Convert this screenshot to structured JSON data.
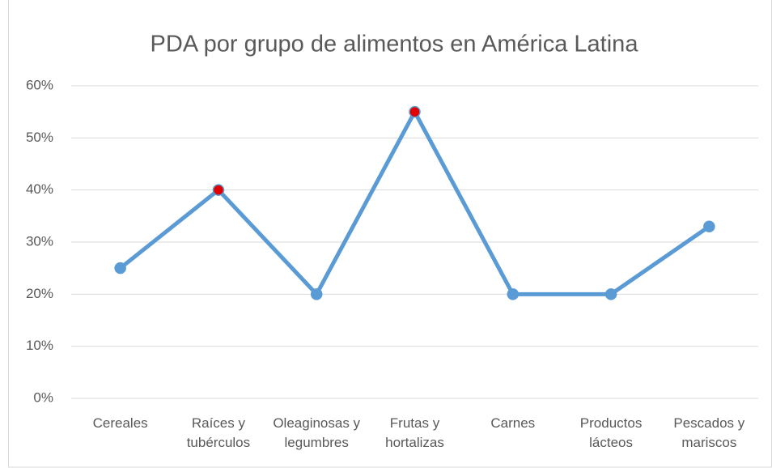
{
  "chart_data": {
    "type": "line",
    "title": "PDA por grupo de alimentos en América Latina",
    "categories": [
      "Cereales",
      "Raíces y tubérculos",
      "Oleaginosas y legumbres",
      "Frutas y hortalizas",
      "Carnes",
      "Productos lácteos",
      "Pescados y mariscos"
    ],
    "series": [
      {
        "name": "PDA",
        "color": "#5b9bd5",
        "values": [
          25,
          40,
          20,
          55,
          20,
          20,
          33
        ],
        "marker_colors": [
          "#5b9bd5",
          "#e00000",
          "#5b9bd5",
          "#e00000",
          "#5b9bd5",
          "#5b9bd5",
          "#5b9bd5"
        ]
      }
    ],
    "ylim": [
      0,
      60
    ],
    "yticks": [
      {
        "value": 0,
        "label": "0%"
      },
      {
        "value": 10,
        "label": "10%"
      },
      {
        "value": 20,
        "label": "20%"
      },
      {
        "value": 30,
        "label": "30%"
      },
      {
        "value": 40,
        "label": "40%"
      },
      {
        "value": 50,
        "label": "50%"
      },
      {
        "value": 60,
        "label": "60%"
      }
    ],
    "grid": true
  }
}
